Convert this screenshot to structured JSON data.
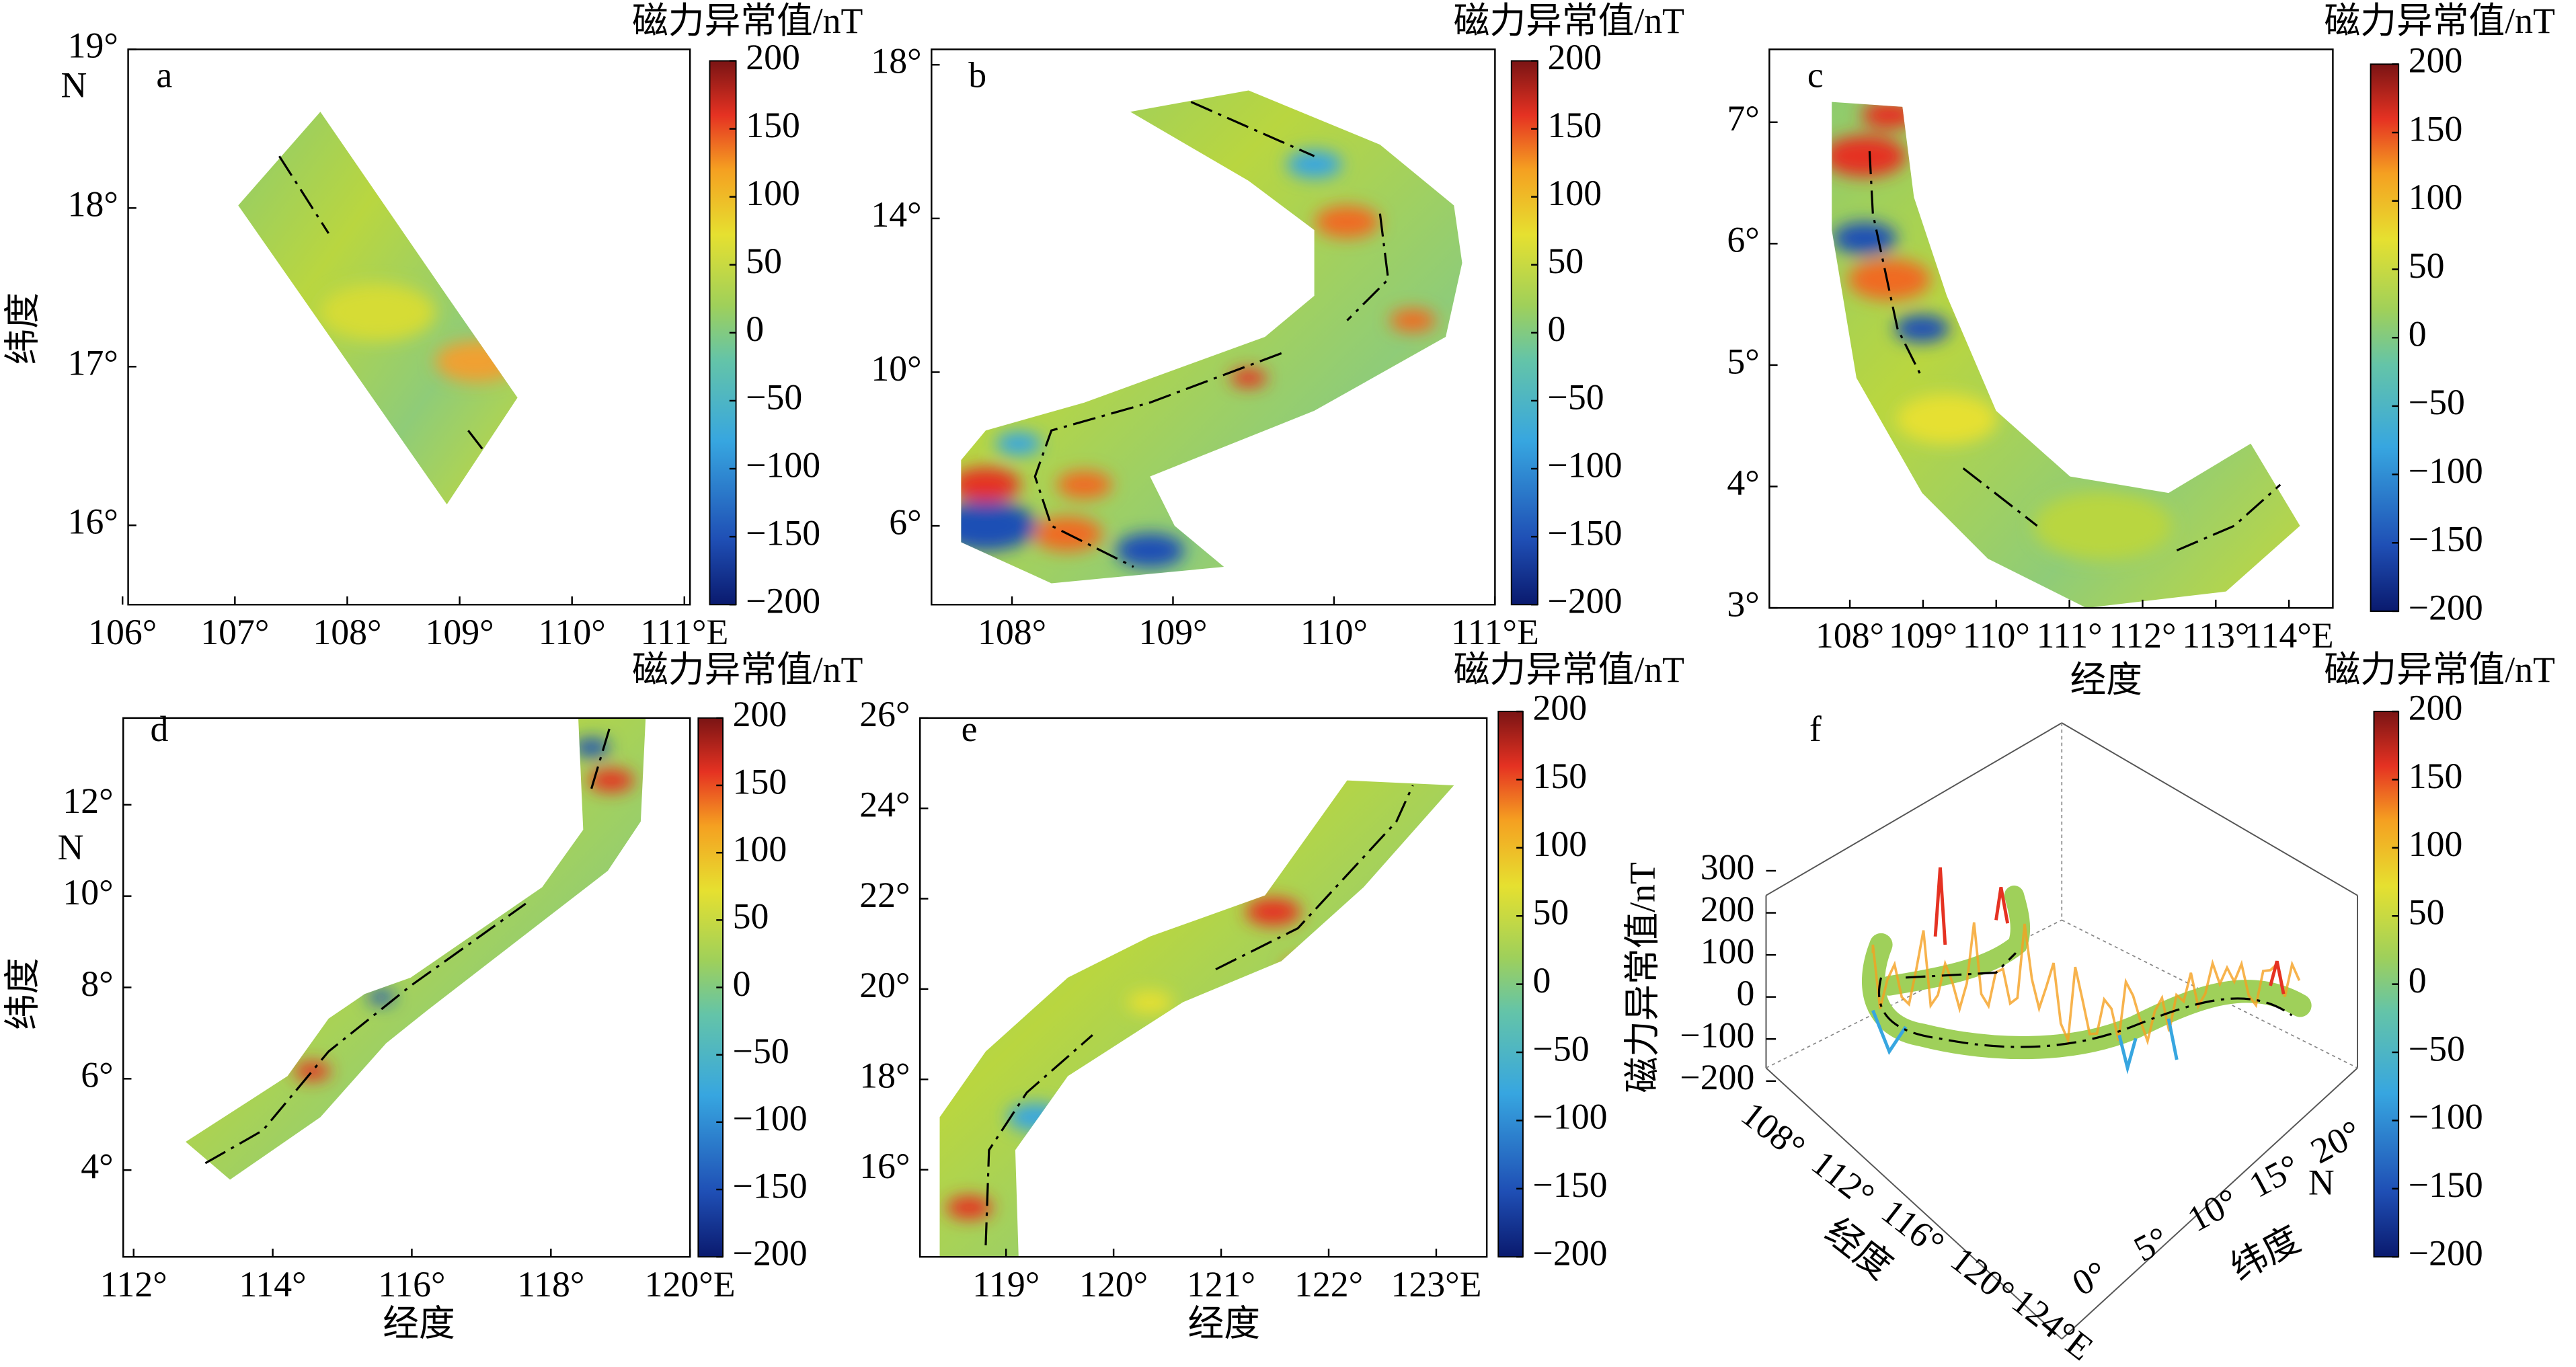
{
  "panels": [
    {
      "label": "a",
      "y_unit": "N",
      "ylabel": "纬度",
      "xlim": [
        106.05,
        111.05
      ],
      "xticks": [
        {
          "value": 106,
          "label": "106°"
        },
        {
          "value": 107,
          "label": "107°"
        },
        {
          "value": 108,
          "label": "108°"
        },
        {
          "value": 109,
          "label": "109°"
        },
        {
          "value": 110,
          "label": "110°"
        },
        {
          "value": 111,
          "label": "111°E"
        }
      ],
      "ylim": [
        15.5,
        19
      ],
      "yticks": [
        {
          "value": 16,
          "label": "16°"
        },
        {
          "value": 17,
          "label": "17°"
        },
        {
          "value": 18,
          "label": "18°"
        },
        {
          "value": 19,
          "label": "19°"
        }
      ],
      "colorbar": {
        "title": "磁力异常值/nT",
        "lim": [
          -200,
          200
        ],
        "ticks": [
          200,
          150,
          100,
          50,
          0,
          {
            "value": -50,
            "label": "−50"
          },
          {
            "value": -100,
            "label": "−100"
          },
          {
            "value": -150,
            "label": "−150"
          },
          {
            "value": -200,
            "label": "−200"
          }
        ]
      }
    },
    {
      "label": "b",
      "xlim": [
        107.5,
        111
      ],
      "xticks": [
        {
          "value": 108,
          "label": "108°"
        },
        {
          "value": 109,
          "label": "109°"
        },
        {
          "value": 110,
          "label": "110°"
        },
        {
          "value": 111,
          "label": "111°E"
        }
      ],
      "ylim": [
        3.95,
        18.4
      ],
      "yticks": [
        {
          "value": 6,
          "label": "6°"
        },
        {
          "value": 10,
          "label": "10°"
        },
        {
          "value": 14,
          "label": "14°"
        },
        {
          "value": 18,
          "label": "18°"
        }
      ],
      "colorbar": {
        "title": "磁力异常值/nT",
        "lim": [
          -200,
          200
        ],
        "ticks": [
          200,
          150,
          100,
          50,
          0,
          {
            "value": -50,
            "label": "−50"
          },
          {
            "value": -100,
            "label": "−100"
          },
          {
            "value": -150,
            "label": "−150"
          },
          {
            "value": -200,
            "label": "−200"
          }
        ]
      }
    },
    {
      "label": "c",
      "xlabel": "经度",
      "xlim": [
        106.9,
        114.6
      ],
      "xticks": [
        {
          "value": 108,
          "label": "108°"
        },
        {
          "value": 109,
          "label": "109°"
        },
        {
          "value": 110,
          "label": "110°"
        },
        {
          "value": 111,
          "label": "111°"
        },
        {
          "value": 112,
          "label": "112°"
        },
        {
          "value": 113,
          "label": "113°"
        },
        {
          "value": 114,
          "label": "114°E"
        }
      ],
      "ylim": [
        3,
        7.6
      ],
      "yticks": [
        {
          "value": 3,
          "label": "3°"
        },
        {
          "value": 4,
          "label": "4°"
        },
        {
          "value": 5,
          "label": "5°"
        },
        {
          "value": 6,
          "label": "6°"
        },
        {
          "value": 7,
          "label": "7°"
        }
      ],
      "colorbar": {
        "title": "磁力异常值/nT",
        "lim": [
          -200,
          200
        ],
        "ticks": [
          200,
          150,
          100,
          50,
          0,
          {
            "value": -50,
            "label": "−50"
          },
          {
            "value": -100,
            "label": "−100"
          },
          {
            "value": -150,
            "label": "−150"
          },
          {
            "value": -200,
            "label": "−200"
          }
        ]
      }
    },
    {
      "label": "d",
      "y_unit": "N",
      "ylabel": "纬度",
      "xlabel": "经度",
      "xlim": [
        111.85,
        120
      ],
      "xticks": [
        {
          "value": 112,
          "label": "112°"
        },
        {
          "value": 114,
          "label": "114°"
        },
        {
          "value": 116,
          "label": "116°"
        },
        {
          "value": 118,
          "label": "118°"
        },
        {
          "value": 120,
          "label": "120°E"
        }
      ],
      "ylim": [
        2.1,
        13.9
      ],
      "yticks": [
        {
          "value": 4,
          "label": "4°"
        },
        {
          "value": 6,
          "label": "6°"
        },
        {
          "value": 8,
          "label": "8°"
        },
        {
          "value": 10,
          "label": "10°"
        },
        {
          "value": 12,
          "label": "12°"
        }
      ],
      "colorbar": {
        "title": "磁力异常值/nT",
        "lim": [
          -200,
          200
        ],
        "ticks": [
          200,
          150,
          100,
          50,
          0,
          {
            "value": -50,
            "label": "−50"
          },
          {
            "value": -100,
            "label": "−100"
          },
          {
            "value": -150,
            "label": "−150"
          },
          {
            "value": -200,
            "label": "−200"
          }
        ]
      }
    },
    {
      "label": "e",
      "xlabel": "经度",
      "xlim": [
        118.2,
        123.47
      ],
      "xticks": [
        {
          "value": 119,
          "label": "119°"
        },
        {
          "value": 120,
          "label": "120°"
        },
        {
          "value": 121,
          "label": "121°"
        },
        {
          "value": 122,
          "label": "122°"
        },
        {
          "value": 123,
          "label": "123°E"
        }
      ],
      "ylim": [
        14.07,
        26
      ],
      "yticks": [
        {
          "value": 16,
          "label": "16°"
        },
        {
          "value": 18,
          "label": "18°"
        },
        {
          "value": 20,
          "label": "20°"
        },
        {
          "value": 22,
          "label": "22°"
        },
        {
          "value": 24,
          "label": "24°"
        },
        {
          "value": 26,
          "label": "26°"
        }
      ],
      "colorbar": {
        "title": "磁力异常值/nT",
        "lim": [
          -200,
          200
        ],
        "ticks": [
          200,
          150,
          100,
          50,
          0,
          {
            "value": -50,
            "label": "−50"
          },
          {
            "value": -100,
            "label": "−100"
          },
          {
            "value": -150,
            "label": "−150"
          },
          {
            "value": -200,
            "label": "−200"
          }
        ]
      }
    },
    {
      "label": "f",
      "xlabel": "经度",
      "ylabel": "纬度",
      "y_unit": "N",
      "zlabel": "磁力异常值/nT",
      "xticks": [
        {
          "value": 108,
          "label": "108°"
        },
        {
          "value": 112,
          "label": "112°"
        },
        {
          "value": 116,
          "label": "116°"
        },
        {
          "value": 120,
          "label": "120°"
        },
        {
          "value": 124,
          "label": "124°E"
        }
      ],
      "yticks": [
        {
          "value": 0,
          "label": "0°"
        },
        {
          "value": 5,
          "label": "5°"
        },
        {
          "value": 10,
          "label": "10°"
        },
        {
          "value": 15,
          "label": "15°"
        },
        {
          "value": 20,
          "label": "20°"
        }
      ],
      "zlim": [
        -200,
        300
      ],
      "zticks": [
        300,
        200,
        100,
        0,
        {
          "value": -100,
          "label": "−100"
        },
        {
          "value": -200,
          "label": "−200"
        }
      ],
      "colorbar": {
        "title": "磁力异常值/nT",
        "lim": [
          -200,
          200
        ],
        "ticks": [
          200,
          150,
          100,
          50,
          0,
          {
            "value": -50,
            "label": "−50"
          },
          {
            "value": -100,
            "label": "−100"
          },
          {
            "value": -150,
            "label": "−150"
          },
          {
            "value": -200,
            "label": "−200"
          }
        ]
      }
    }
  ]
}
